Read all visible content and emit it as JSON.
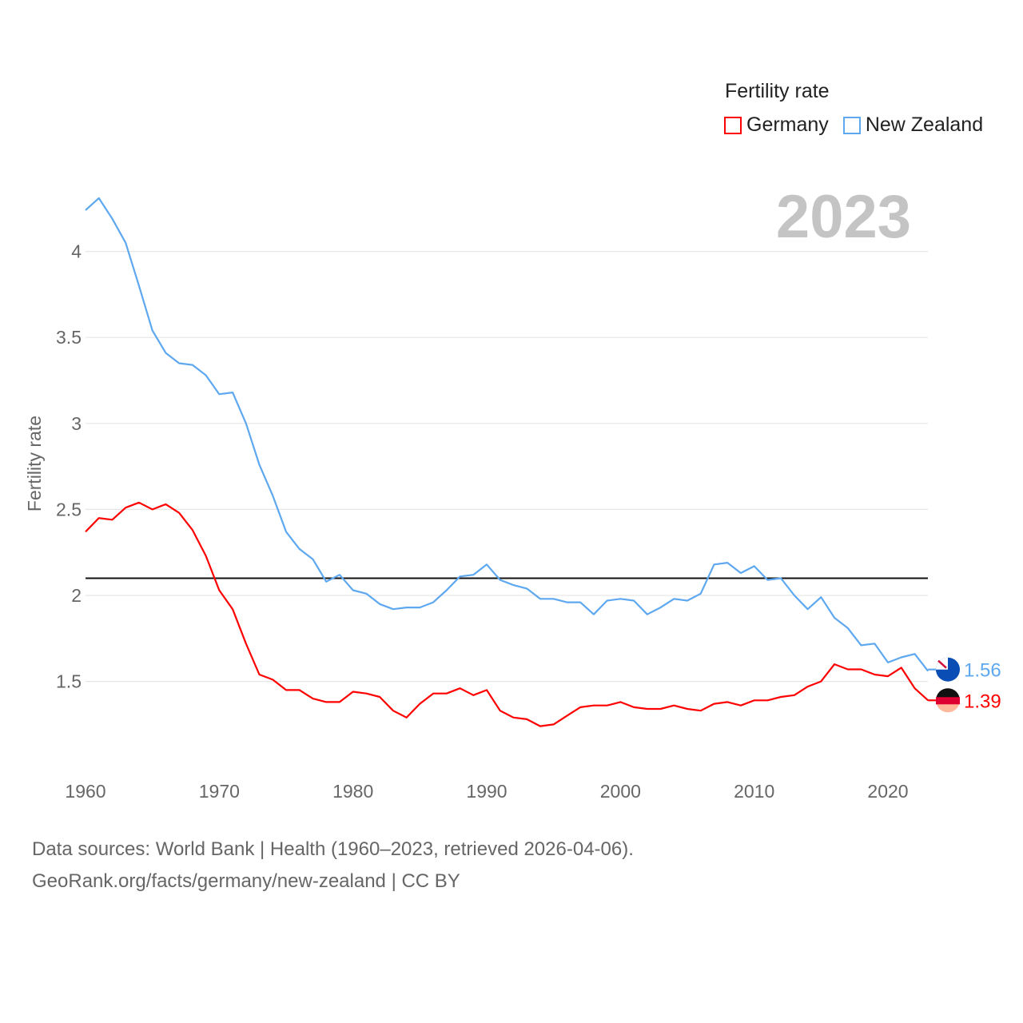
{
  "chart_data": {
    "type": "line",
    "title": "Fertility rate",
    "ylabel": "Fertility rate",
    "xlabel": "",
    "big_year_label": "2023",
    "xlim": [
      1960,
      2023
    ],
    "ylim": [
      1.1,
      4.35
    ],
    "x_ticks": [
      "1960",
      "1970",
      "1980",
      "1990",
      "2000",
      "2010",
      "2020"
    ],
    "y_ticks": [
      "1.5",
      "2",
      "2.5",
      "3",
      "3.5",
      "4"
    ],
    "reference_line": 2.1,
    "legend_position": "top-right",
    "x": [
      1960,
      1961,
      1962,
      1963,
      1964,
      1965,
      1966,
      1967,
      1968,
      1969,
      1970,
      1971,
      1972,
      1973,
      1974,
      1975,
      1976,
      1977,
      1978,
      1979,
      1980,
      1981,
      1982,
      1983,
      1984,
      1985,
      1986,
      1987,
      1988,
      1989,
      1990,
      1991,
      1992,
      1993,
      1994,
      1995,
      1996,
      1997,
      1998,
      1999,
      2000,
      2001,
      2002,
      2003,
      2004,
      2005,
      2006,
      2007,
      2008,
      2009,
      2010,
      2011,
      2012,
      2013,
      2014,
      2015,
      2016,
      2017,
      2018,
      2019,
      2020,
      2021,
      2022,
      2023
    ],
    "series": [
      {
        "name": "Germany",
        "color": "#ff0000",
        "end_label": "1.39",
        "values": [
          2.37,
          2.45,
          2.44,
          2.51,
          2.54,
          2.5,
          2.53,
          2.48,
          2.38,
          2.23,
          2.03,
          1.92,
          1.72,
          1.54,
          1.51,
          1.45,
          1.45,
          1.4,
          1.38,
          1.38,
          1.44,
          1.43,
          1.41,
          1.33,
          1.29,
          1.37,
          1.43,
          1.43,
          1.46,
          1.42,
          1.45,
          1.33,
          1.29,
          1.28,
          1.24,
          1.25,
          1.3,
          1.35,
          1.36,
          1.36,
          1.38,
          1.35,
          1.34,
          1.34,
          1.36,
          1.34,
          1.33,
          1.37,
          1.38,
          1.36,
          1.39,
          1.39,
          1.41,
          1.42,
          1.47,
          1.5,
          1.6,
          1.57,
          1.57,
          1.54,
          1.53,
          1.58,
          1.46,
          1.39
        ]
      },
      {
        "name": "New Zealand",
        "color": "#5ea8f0",
        "end_label": "1.56",
        "values": [
          4.24,
          4.31,
          4.19,
          4.05,
          3.8,
          3.54,
          3.41,
          3.35,
          3.34,
          3.28,
          3.17,
          3.18,
          3.0,
          2.76,
          2.58,
          2.37,
          2.27,
          2.21,
          2.08,
          2.12,
          2.03,
          2.01,
          1.95,
          1.92,
          1.93,
          1.93,
          1.96,
          2.03,
          2.11,
          2.12,
          2.18,
          2.09,
          2.06,
          2.04,
          1.98,
          1.98,
          1.96,
          1.96,
          1.89,
          1.97,
          1.98,
          1.97,
          1.89,
          1.93,
          1.98,
          1.97,
          2.01,
          2.18,
          2.19,
          2.13,
          2.17,
          2.09,
          2.1,
          2.0,
          1.92,
          1.99,
          1.87,
          1.81,
          1.71,
          1.72,
          1.61,
          1.64,
          1.66,
          1.56
        ]
      }
    ]
  },
  "footer": {
    "line1": "Data sources: World Bank | Health (1960–2023, retrieved 2026-04-06).",
    "line2": "GeoRank.org/facts/germany/new-zealand | CC BY"
  }
}
